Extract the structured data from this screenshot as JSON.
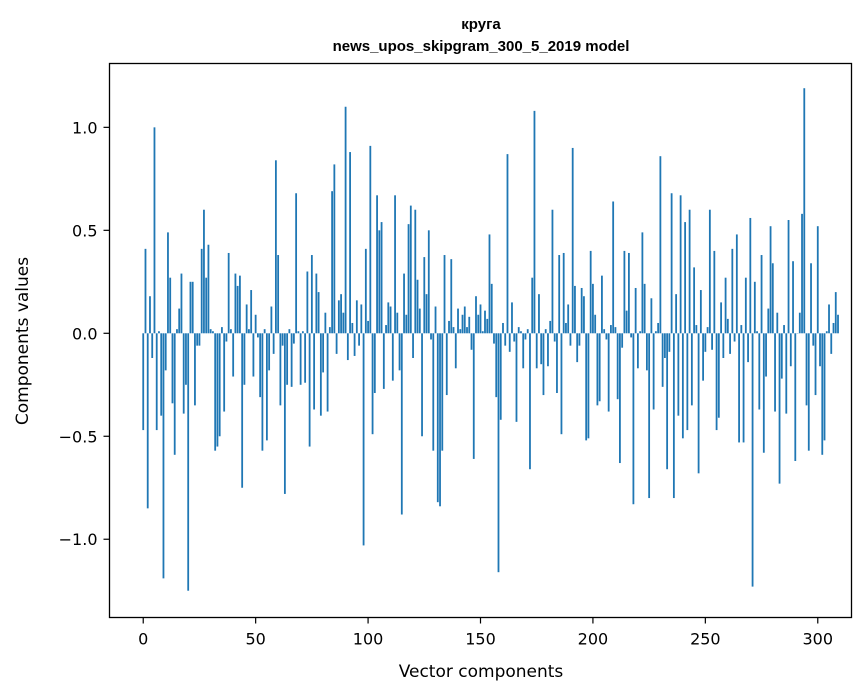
{
  "chart_data": {
    "type": "bar",
    "title_line1": "круга",
    "title_line2": "news_upos_skipgram_300_5_2019 model",
    "xlabel": "Vector components",
    "ylabel": "Components values",
    "xlim": [
      -15,
      315
    ],
    "ylim": [
      -1.38,
      1.31
    ],
    "xticks": [
      0,
      50,
      100,
      150,
      200,
      250,
      300
    ],
    "xtick_labels": [
      "0",
      "50",
      "100",
      "150",
      "200",
      "250",
      "300"
    ],
    "yticks": [
      -1.0,
      -0.5,
      0.0,
      0.5,
      1.0
    ],
    "ytick_labels": [
      "−1.0",
      "−0.5",
      "0.0",
      "0.5",
      "1.0"
    ],
    "bar_color": "#1f77b4",
    "values": [
      -0.47,
      0.41,
      -0.85,
      0.18,
      -0.12,
      1.0,
      -0.47,
      0.01,
      -0.4,
      -1.19,
      -0.18,
      0.49,
      0.27,
      -0.34,
      -0.59,
      0.02,
      0.12,
      0.29,
      -0.39,
      -0.25,
      -1.25,
      0.25,
      0.25,
      -0.35,
      -0.06,
      -0.06,
      0.41,
      0.6,
      0.27,
      0.43,
      0.02,
      0.01,
      -0.57,
      -0.55,
      -0.5,
      0.03,
      -0.38,
      -0.04,
      0.39,
      0.02,
      -0.21,
      0.29,
      0.23,
      0.28,
      -0.75,
      -0.25,
      0.14,
      0.02,
      0.21,
      -0.21,
      0.09,
      -0.02,
      -0.31,
      -0.57,
      0.02,
      -0.52,
      -0.18,
      0.13,
      -0.1,
      0.84,
      0.38,
      -0.35,
      -0.06,
      -0.78,
      -0.25,
      0.02,
      -0.26,
      -0.05,
      0.68,
      0.01,
      -0.25,
      0.01,
      -0.24,
      0.3,
      -0.55,
      0.38,
      -0.37,
      0.29,
      0.2,
      -0.4,
      -0.19,
      0.1,
      -0.38,
      0.03,
      0.69,
      0.82,
      -0.1,
      0.16,
      0.19,
      0.1,
      1.1,
      -0.13,
      0.88,
      0.05,
      -0.11,
      0.16,
      -0.06,
      0.14,
      -1.03,
      0.41,
      0.06,
      0.91,
      -0.49,
      -0.29,
      0.67,
      0.5,
      0.54,
      -0.27,
      0.04,
      0.15,
      0.13,
      -0.23,
      0.67,
      0.1,
      -0.18,
      -0.88,
      0.29,
      0.09,
      0.53,
      0.62,
      -0.12,
      0.6,
      0.26,
      0.12,
      -0.5,
      0.37,
      0.19,
      0.5,
      -0.03,
      -0.57,
      0.13,
      -0.82,
      -0.84,
      -0.57,
      0.38,
      -0.3,
      0.06,
      0.36,
      0.03,
      -0.17,
      0.12,
      0.02,
      0.09,
      0.13,
      0.03,
      0.08,
      -0.08,
      -0.61,
      0.18,
      0.09,
      0.14,
      0.01,
      0.11,
      0.07,
      0.48,
      0.24,
      -0.05,
      -0.31,
      -1.16,
      -0.42,
      0.05,
      -0.06,
      0.87,
      -0.09,
      0.15,
      -0.04,
      -0.43,
      0.03,
      0.01,
      -0.17,
      -0.03,
      0.02,
      -0.66,
      0.27,
      1.08,
      -0.17,
      0.19,
      -0.15,
      -0.3,
      0.02,
      -0.16,
      0.06,
      0.6,
      -0.04,
      -0.29,
      0.38,
      -0.49,
      0.39,
      0.05,
      0.14,
      -0.06,
      0.9,
      0.23,
      -0.14,
      -0.06,
      0.22,
      0.18,
      -0.52,
      -0.51,
      0.4,
      0.24,
      0.09,
      -0.35,
      -0.33,
      0.28,
      0.02,
      -0.03,
      -0.38,
      0.04,
      0.64,
      0.03,
      -0.32,
      -0.63,
      -0.07,
      0.4,
      0.11,
      0.39,
      -0.02,
      -0.83,
      0.22,
      -0.17,
      0.01,
      0.49,
      0.24,
      -0.18,
      -0.8,
      0.17,
      -0.37,
      0.01,
      0.05,
      0.86,
      -0.26,
      -0.12,
      -0.66,
      -0.09,
      0.68,
      -0.8,
      0.19,
      -0.4,
      0.67,
      -0.51,
      0.54,
      -0.47,
      0.6,
      -0.35,
      0.32,
      0.04,
      -0.68,
      0.21,
      -0.23,
      -0.09,
      0.03,
      0.6,
      -0.08,
      0.4,
      -0.47,
      -0.41,
      0.15,
      -0.12,
      0.27,
      0.07,
      -0.1,
      0.41,
      -0.04,
      0.48,
      -0.53,
      0.04,
      -0.53,
      0.27,
      -0.14,
      0.56,
      -1.23,
      0.25,
      0.01,
      -0.37,
      0.38,
      -0.58,
      -0.21,
      0.12,
      0.52,
      0.34,
      -0.38,
      0.1,
      -0.73,
      -0.22,
      0.04,
      -0.39,
      0.55,
      -0.16,
      0.35,
      -0.62,
      0.0,
      0.1,
      0.58,
      1.19,
      -0.35,
      -0.57,
      0.34,
      -0.06,
      -0.3,
      0.52,
      -0.16,
      -0.59,
      -0.52,
      0.01,
      0.14,
      -0.1,
      0.05,
      0.2,
      0.09
    ]
  }
}
